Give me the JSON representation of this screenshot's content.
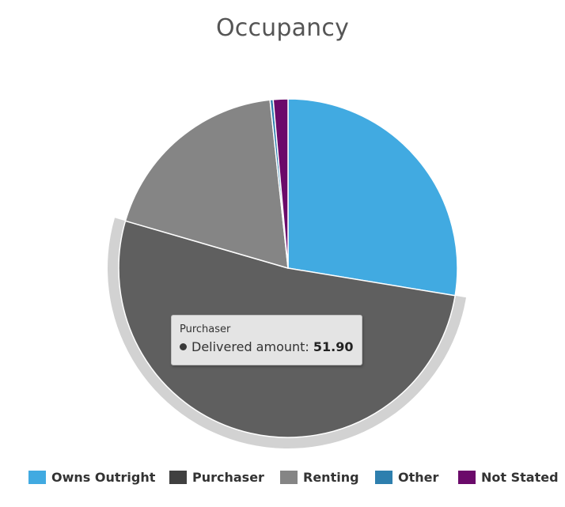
{
  "chart_data": {
    "type": "pie",
    "title": "Occupancy",
    "categories": [
      "Owns Outright",
      "Purchaser",
      "Renting",
      "Other",
      "Not Stated"
    ],
    "values": [
      27.6,
      51.9,
      18.8,
      0.3,
      1.4
    ],
    "colors": [
      "#41aae1",
      "#5f5f5f",
      "#858585",
      "#2e7fae",
      "#6b0a6a"
    ],
    "legend_colors": [
      "#41aae1",
      "#404040",
      "#858585",
      "#2e7fae",
      "#6b0a6a"
    ],
    "highlighted": "Purchaser",
    "legend_position": "bottom"
  },
  "tooltip": {
    "header": "Purchaser",
    "series_label": "Delivered amount:",
    "value": "51.90"
  }
}
